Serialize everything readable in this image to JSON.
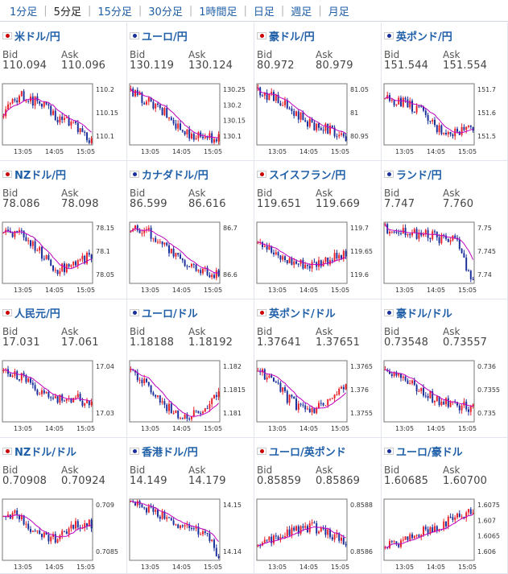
{
  "tabs": [
    {
      "label": "1分足",
      "active": false
    },
    {
      "label": "5分足",
      "active": true
    },
    {
      "label": "15分足",
      "active": false
    },
    {
      "label": "30分足",
      "active": false
    },
    {
      "label": "1時間足",
      "active": false
    },
    {
      "label": "日足",
      "active": false
    },
    {
      "label": "週足",
      "active": false
    },
    {
      "label": "月足",
      "active": false
    }
  ],
  "bid_label": "Bid",
  "ask_label": "Ask",
  "x_ticks": [
    "13:05",
    "14:05",
    "15:05"
  ],
  "colors": {
    "up": "#e8202a",
    "down": "#1a2f9c",
    "ma": "#c000c0",
    "link": "#1f5fa8"
  },
  "pairs": [
    {
      "name": "米ドル/円",
      "flag": "us-jp-flag",
      "bid": "110.094",
      "ask": "110.096",
      "y_ticks": [
        "110.2",
        "110.15",
        "110.1"
      ],
      "trend": [
        0.55,
        0.8,
        0.7,
        0.45,
        0.35,
        0.05
      ]
    },
    {
      "name": "ユーロ/円",
      "flag": "eu-jp-flag",
      "bid": "130.119",
      "ask": "130.124",
      "y_ticks": [
        "130.25",
        "130.2",
        "130.15",
        "130.1"
      ],
      "trend": [
        0.85,
        0.7,
        0.5,
        0.2,
        0.15,
        0.1
      ]
    },
    {
      "name": "豪ドル/円",
      "flag": "au-jp-flag",
      "bid": "80.972",
      "ask": "80.979",
      "y_ticks": [
        "81.05",
        "81",
        "80.95"
      ],
      "trend": [
        0.9,
        0.75,
        0.55,
        0.35,
        0.25,
        0.15
      ]
    },
    {
      "name": "英ポンド/円",
      "flag": "gb-jp-flag",
      "bid": "151.544",
      "ask": "151.554",
      "y_ticks": [
        "151.7",
        "151.6",
        "151.5"
      ],
      "trend": [
        0.75,
        0.7,
        0.55,
        0.25,
        0.2,
        0.3
      ]
    },
    {
      "name": "NZドル/円",
      "flag": "nz-jp-flag",
      "bid": "78.086",
      "ask": "78.098",
      "y_ticks": [
        "78.15",
        "78.1",
        "78.05"
      ],
      "trend": [
        0.85,
        0.8,
        0.55,
        0.2,
        0.35,
        0.45
      ]
    },
    {
      "name": "カナダドル/円",
      "flag": "ca-jp-flag",
      "bid": "86.599",
      "ask": "86.616",
      "y_ticks": [
        "86.7",
        "86.6"
      ],
      "trend": [
        0.9,
        0.85,
        0.6,
        0.3,
        0.2,
        0.15
      ]
    },
    {
      "name": "スイスフラン/円",
      "flag": "ch-jp-flag",
      "bid": "119.651",
      "ask": "119.669",
      "y_ticks": [
        "119.7",
        "119.65",
        "119.6"
      ],
      "trend": [
        0.75,
        0.45,
        0.35,
        0.3,
        0.4,
        0.45
      ]
    },
    {
      "name": "ランド/円",
      "flag": "za-jp-flag",
      "bid": "7.747",
      "ask": "7.760",
      "y_ticks": [
        "7.75",
        "7.745",
        "7.74"
      ],
      "trend": [
        0.9,
        0.85,
        0.8,
        0.75,
        0.7,
        0.05
      ]
    },
    {
      "name": "人民元/円",
      "flag": "cn-jp-flag",
      "bid": "17.031",
      "ask": "17.061",
      "y_ticks": [
        "17.04",
        "17.03"
      ],
      "trend": [
        0.8,
        0.75,
        0.5,
        0.35,
        0.4,
        0.3
      ]
    },
    {
      "name": "ユーロ/ドル",
      "flag": "eu-us-flag",
      "bid": "1.18188",
      "ask": "1.18192",
      "y_ticks": [
        "1.182",
        "1.1815",
        "1.181"
      ],
      "trend": [
        0.85,
        0.55,
        0.25,
        0.1,
        0.2,
        0.45
      ]
    },
    {
      "name": "英ポンド/ドル",
      "flag": "gb-us-flag",
      "bid": "1.37641",
      "ask": "1.37651",
      "y_ticks": [
        "1.3765",
        "1.376",
        "1.3755"
      ],
      "trend": [
        0.85,
        0.6,
        0.3,
        0.15,
        0.3,
        0.55
      ]
    },
    {
      "name": "豪ドル/ドル",
      "flag": "au-us-flag",
      "bid": "0.73548",
      "ask": "0.73557",
      "y_ticks": [
        "0.736",
        "0.7355",
        "0.735"
      ],
      "trend": [
        0.9,
        0.7,
        0.5,
        0.35,
        0.3,
        0.2
      ]
    },
    {
      "name": "NZドル/ドル",
      "flag": "nz-us-flag",
      "bid": "0.70908",
      "ask": "0.70924",
      "y_ticks": [
        "0.709",
        "0.7085"
      ],
      "trend": [
        0.8,
        0.7,
        0.4,
        0.35,
        0.55,
        0.6
      ]
    },
    {
      "name": "香港ドル/円",
      "flag": "hk-jp-flag",
      "bid": "14.149",
      "ask": "14.179",
      "y_ticks": [
        "14.15",
        "14.14"
      ],
      "trend": [
        0.9,
        0.85,
        0.7,
        0.55,
        0.5,
        0.1
      ]
    },
    {
      "name": "ユーロ/英ポンド",
      "flag": "eu-gb-flag",
      "bid": "0.85859",
      "ask": "0.85869",
      "y_ticks": [
        "0.8588",
        "0.8586"
      ],
      "trend": [
        0.2,
        0.35,
        0.5,
        0.55,
        0.45,
        0.3
      ]
    },
    {
      "name": "ユーロ/豪ドル",
      "flag": "eu-au-flag",
      "bid": "1.60685",
      "ask": "1.60700",
      "y_ticks": [
        "1.6075",
        "1.607",
        "1.6065",
        "1.606"
      ],
      "trend": [
        0.2,
        0.3,
        0.45,
        0.55,
        0.7,
        0.8
      ]
    }
  ]
}
